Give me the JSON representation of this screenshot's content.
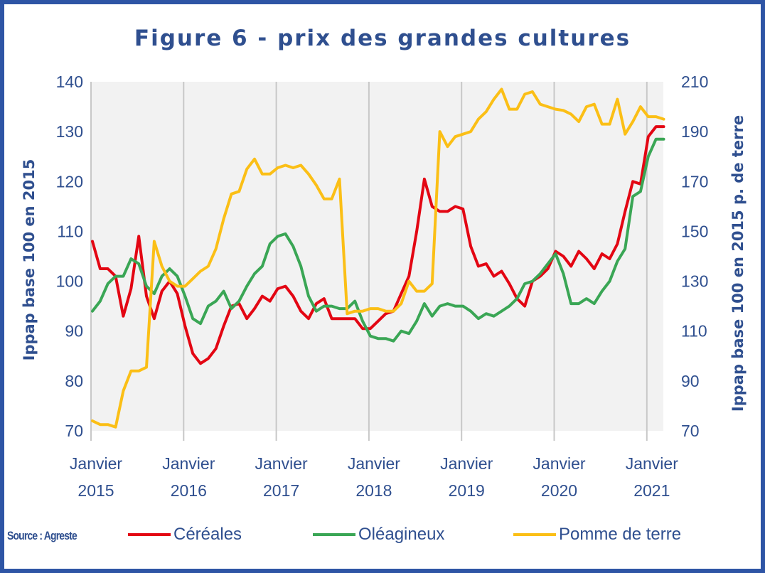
{
  "title": "Figure 6 - prix des grandes cultures",
  "source": "Source : Agreste",
  "chart_data": {
    "type": "line",
    "title": "Figure 6 - prix des grandes cultures",
    "xlabel": "",
    "ylabel": "Ippap base 100 en 2015",
    "y2label": "Ippap base 100 en 2015 p. de terre",
    "ylim": [
      70,
      140
    ],
    "y2lim": [
      70,
      210
    ],
    "yticks": [
      70,
      80,
      90,
      100,
      110,
      120,
      130,
      140
    ],
    "y2ticks": [
      70,
      90,
      110,
      130,
      150,
      170,
      190,
      210
    ],
    "x_tick_labels": [
      {
        "line1": "Janvier",
        "line2": "2015"
      },
      {
        "line1": "Janvier",
        "line2": "2016"
      },
      {
        "line1": "Janvier",
        "line2": "2017"
      },
      {
        "line1": "Janvier",
        "line2": "2018"
      },
      {
        "line1": "Janvier",
        "line2": "2019"
      },
      {
        "line1": "Janvier",
        "line2": "2020"
      },
      {
        "line1": "Janvier",
        "line2": "2021"
      }
    ],
    "x_start": "2015-01",
    "x_end": "2021-03",
    "frequency": "monthly",
    "grid": "vertical lines at each January",
    "plot_background": "#f2f2f2",
    "legend_position": "bottom",
    "series": [
      {
        "name": "Céréales",
        "axis": "left",
        "color": "#e30613",
        "values": [
          108,
          102.5,
          102.5,
          101,
          93,
          98.5,
          109,
          97,
          92.5,
          98,
          100,
          97.5,
          91,
          85.5,
          83.5,
          84.5,
          86.5,
          91,
          95,
          95.5,
          92.5,
          94.5,
          97,
          96,
          98.5,
          99,
          97,
          94,
          92.5,
          95.5,
          96.5,
          92.5,
          92.5,
          92.5,
          92.5,
          90.5,
          90.5,
          92,
          93.5,
          94,
          97.5,
          101,
          110,
          120.5,
          115,
          114,
          114,
          115,
          114.5,
          107,
          103,
          103.5,
          101,
          102,
          99.5,
          96.5,
          95,
          100,
          101,
          102.5,
          106,
          105,
          103,
          106,
          104.5,
          102.5,
          105.5,
          104.5,
          107.5,
          114,
          120,
          119.5,
          129,
          131,
          131
        ]
      },
      {
        "name": "Oléagineux",
        "axis": "left",
        "color": "#3aa655",
        "values": [
          94,
          96,
          99.5,
          101,
          101,
          104.5,
          103.5,
          99,
          97.5,
          101,
          102.5,
          101,
          97,
          92.5,
          91.5,
          95,
          96,
          98,
          94.5,
          96,
          99,
          101.5,
          103,
          107.5,
          109,
          109.5,
          107,
          103,
          97,
          94,
          95,
          95,
          94.5,
          94.5,
          96,
          92,
          89,
          88.5,
          88.5,
          88,
          90,
          89.5,
          92,
          95.5,
          93,
          95,
          95.5,
          95,
          95,
          94,
          92.5,
          93.5,
          93,
          94,
          95,
          96.5,
          99.5,
          100,
          101.5,
          103.5,
          105.5,
          101.5,
          95.5,
          95.5,
          96.5,
          95.5,
          98,
          100,
          104,
          106.5,
          117,
          118,
          125,
          128.5,
          128.5
        ]
      },
      {
        "name": "Pomme de terre",
        "axis": "right",
        "color": "#fbbf16",
        "values": [
          74,
          72.5,
          72.5,
          71.5,
          86,
          94,
          94,
          95.5,
          146,
          136,
          130,
          128,
          128,
          131,
          134,
          136,
          143,
          155,
          165,
          166,
          175,
          179,
          173,
          173,
          175.5,
          176.5,
          175.5,
          176.5,
          173,
          168.5,
          163,
          163,
          171,
          117,
          118,
          118,
          119,
          119,
          118,
          118,
          121,
          130,
          126,
          126,
          129,
          190,
          184,
          188,
          189,
          190,
          195,
          198,
          203,
          207,
          199,
          199,
          205,
          206,
          201,
          200,
          199,
          198.5,
          197,
          194,
          200,
          201,
          193,
          193,
          203,
          189,
          194,
          200,
          196,
          196,
          195
        ]
      }
    ]
  },
  "legend": [
    {
      "label": "Céréales",
      "color": "#e30613"
    },
    {
      "label": "Oléagineux",
      "color": "#3aa655"
    },
    {
      "label": "Pomme de terre",
      "color": "#fbbf16"
    }
  ]
}
